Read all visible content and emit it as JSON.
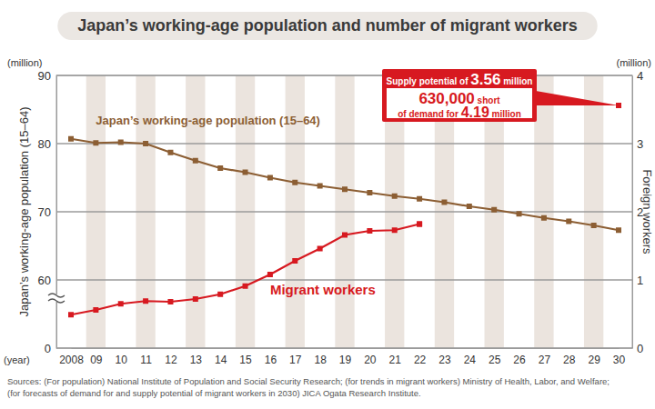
{
  "chart_data": {
    "type": "line",
    "title": "Japan’s working-age population and number of migrant workers",
    "ylabel": "Japan’s working-age population (15–64)",
    "y2label": "Foreign workers",
    "yunit": "(million)",
    "y2unit": "(million)",
    "xlabel": "(year)",
    "categories": [
      "2008",
      "09",
      "10",
      "11",
      "12",
      "13",
      "14",
      "15",
      "16",
      "17",
      "18",
      "19",
      "20",
      "21",
      "22",
      "23",
      "24",
      "25",
      "26",
      "27",
      "28",
      "29",
      "30"
    ],
    "ylim": [
      0,
      90
    ],
    "yticks": [
      0,
      60,
      70,
      80,
      90
    ],
    "y2lim": [
      0,
      4
    ],
    "y2ticks": [
      0,
      1,
      2,
      3,
      4
    ],
    "grid": true,
    "series": [
      {
        "name": "Japan’s working-age population (15–64)",
        "color": "#8c5e33",
        "marker": "square",
        "axis": "y",
        "values": [
          80.7,
          80.1,
          80.2,
          80.0,
          78.7,
          77.5,
          76.4,
          75.8,
          75.0,
          74.3,
          73.8,
          73.3,
          72.8,
          72.3,
          71.9,
          71.4,
          70.8,
          70.3,
          69.7,
          69.1,
          68.6,
          68.0,
          67.3
        ]
      },
      {
        "name": "Migrant workers",
        "color": "#d71920",
        "marker": "square",
        "axis": "y2",
        "values": [
          0.49,
          0.56,
          0.65,
          0.69,
          0.68,
          0.72,
          0.79,
          0.91,
          1.08,
          1.28,
          1.46,
          1.66,
          1.72,
          1.73,
          1.82,
          null,
          null,
          null,
          null,
          null,
          null,
          null,
          null
        ]
      },
      {
        "color": "#d71920",
        "marker": "square",
        "axis": "y2",
        "line_style": "dashed",
        "values": [
          null,
          null,
          null,
          null,
          null,
          null,
          null,
          null,
          null,
          null,
          null,
          null,
          null,
          null,
          1.82,
          null,
          null,
          null,
          null,
          null,
          null,
          null,
          3.56
        ]
      }
    ],
    "annotation": {
      "supply_prefix": "Supply potential of",
      "supply_value": "3.56",
      "supply_unit": "million",
      "shortfall_value": "630,000",
      "shortfall_text": "short",
      "demand_prefix": "of demand for",
      "demand_value": "4.19",
      "demand_unit": "million"
    },
    "source": [
      "Sources: (For population) National Institute of Population and Social Security Research; (for trends in migrant workers) Ministry of Health, Labor, and Welfare;",
      "(for forecasts of demand for and supply potential of migrant workers in 2030) JICA Ogata Research Institute."
    ]
  }
}
